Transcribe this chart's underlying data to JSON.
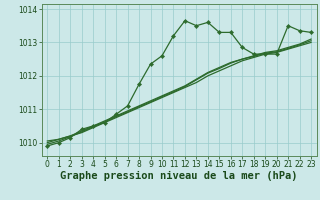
{
  "title": "",
  "xlabel": "Graphe pression niveau de la mer (hPa)",
  "ylabel": "",
  "bg_color": "#cce8e8",
  "grid_color": "#99cccc",
  "line_color": "#2d6b2d",
  "marker_color": "#2d6b2d",
  "xlim": [
    -0.5,
    23.5
  ],
  "ylim": [
    1009.6,
    1014.15
  ],
  "yticks": [
    1010,
    1011,
    1012,
    1013,
    1014
  ],
  "xticks": [
    0,
    1,
    2,
    3,
    4,
    5,
    6,
    7,
    8,
    9,
    10,
    11,
    12,
    13,
    14,
    15,
    16,
    17,
    18,
    19,
    20,
    21,
    22,
    23
  ],
  "series_jagged": [
    1009.9,
    1010.0,
    1010.15,
    1010.4,
    1010.5,
    1010.6,
    1010.85,
    1011.1,
    1011.75,
    1012.35,
    1012.6,
    1013.2,
    1013.65,
    1013.5,
    1013.6,
    1013.3,
    1013.3,
    1012.85,
    1012.65,
    1012.65,
    1012.65,
    1013.5,
    1013.35,
    1013.3
  ],
  "series_linear1": [
    1010.05,
    1010.1,
    1010.2,
    1010.3,
    1010.45,
    1010.6,
    1010.75,
    1010.9,
    1011.05,
    1011.2,
    1011.35,
    1011.5,
    1011.65,
    1011.8,
    1012.0,
    1012.15,
    1012.3,
    1012.45,
    1012.55,
    1012.65,
    1012.7,
    1012.8,
    1012.9,
    1013.0
  ],
  "series_linear2": [
    1010.0,
    1010.1,
    1010.2,
    1010.35,
    1010.5,
    1010.65,
    1010.8,
    1010.95,
    1011.1,
    1011.25,
    1011.4,
    1011.55,
    1011.7,
    1011.9,
    1012.1,
    1012.25,
    1012.4,
    1012.5,
    1012.6,
    1012.7,
    1012.75,
    1012.85,
    1012.95,
    1013.1
  ],
  "series_linear3": [
    1009.95,
    1010.05,
    1010.18,
    1010.32,
    1010.48,
    1010.62,
    1010.78,
    1010.92,
    1011.08,
    1011.22,
    1011.38,
    1011.52,
    1011.68,
    1011.88,
    1012.08,
    1012.22,
    1012.38,
    1012.5,
    1012.58,
    1012.68,
    1012.72,
    1012.82,
    1012.93,
    1013.05
  ],
  "xlabel_fontsize": 7.5,
  "xlabel_color": "#1a4a1a",
  "tick_fontsize": 5.5,
  "tick_color": "#1a4a1a"
}
